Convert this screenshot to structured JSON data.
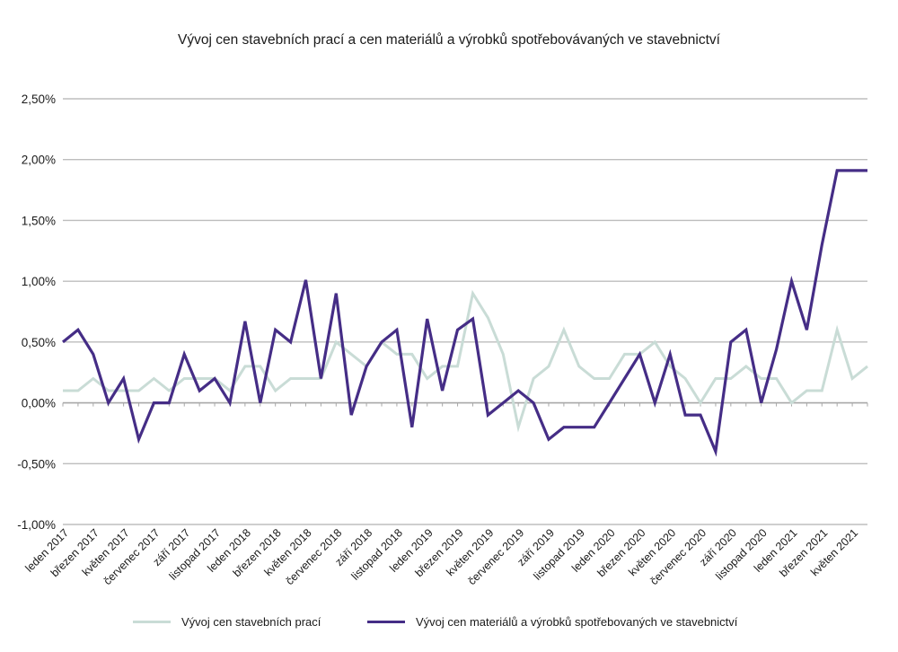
{
  "chart_data": {
    "type": "line",
    "title": "Vývoj cen stavebních prací a cen materiálů a výrobků spotřebovávaných ve stavebnictví",
    "xlabel": "",
    "ylabel": "",
    "ylim": [
      -1.0,
      2.5
    ],
    "yticks": [
      "2,50%",
      "2,00%",
      "1,50%",
      "1,00%",
      "0,50%",
      "0,00%",
      "-0,50%",
      "-1,00%"
    ],
    "ytick_values": [
      2.5,
      2.0,
      1.5,
      1.0,
      0.5,
      0.0,
      -0.5,
      -1.0
    ],
    "grid": true,
    "legend_position": "bottom",
    "x_tick_labels": [
      "leden 2017",
      "březen 2017",
      "květen 2017",
      "červenec 2017",
      "září 2017",
      "listopad 2017",
      "leden 2018",
      "březen 2018",
      "květen 2018",
      "červenec 2018",
      "září 2018",
      "listopad 2018",
      "leden 2019",
      "březen 2019",
      "květen 2019",
      "červenec 2019",
      "září 2019",
      "listopad 2019",
      "leden 2020",
      "březen 2020",
      "květen 2020",
      "červenec 2020",
      "září 2020",
      "listopad 2020",
      "leden 2021",
      "březen 2021",
      "květen 2021"
    ],
    "categories": [
      "leden 2017",
      "únor 2017",
      "březen 2017",
      "duben 2017",
      "květen 2017",
      "červen 2017",
      "červenec 2017",
      "srpen 2017",
      "září 2017",
      "říjen 2017",
      "listopad 2017",
      "prosinec 2017",
      "leden 2018",
      "únor 2018",
      "březen 2018",
      "duben 2018",
      "květen 2018",
      "červen 2018",
      "červenec 2018",
      "srpen 2018",
      "září 2018",
      "říjen 2018",
      "listopad 2018",
      "prosinec 2018",
      "leden 2019",
      "únor 2019",
      "březen 2019",
      "duben 2019",
      "květen 2019",
      "červen 2019",
      "červenec 2019",
      "srpen 2019",
      "září 2019",
      "říjen 2019",
      "listopad 2019",
      "prosinec 2019",
      "leden 2020",
      "únor 2020",
      "březen 2020",
      "duben 2020",
      "květen 2020",
      "červen 2020",
      "červenec 2020",
      "srpen 2020",
      "září 2020",
      "říjen 2020",
      "listopad 2020",
      "prosinec 2020",
      "leden 2021",
      "únor 2021",
      "březen 2021",
      "duben 2021",
      "květen 2021",
      "červen 2021"
    ],
    "series": [
      {
        "name": "Vývoj cen stavebních prací",
        "color": "#c9dcd6",
        "values": [
          0.1,
          0.1,
          0.2,
          0.1,
          0.1,
          0.1,
          0.2,
          0.1,
          0.2,
          0.2,
          0.2,
          0.1,
          0.3,
          0.3,
          0.1,
          0.2,
          0.2,
          0.2,
          0.5,
          0.4,
          0.3,
          0.5,
          0.4,
          0.4,
          0.2,
          0.3,
          0.3,
          0.9,
          0.7,
          0.4,
          -0.2,
          0.2,
          0.3,
          0.6,
          0.3,
          0.2,
          0.2,
          0.4,
          0.4,
          0.5,
          0.3,
          0.2,
          0.0,
          0.2,
          0.2,
          0.3,
          0.2,
          0.2,
          0.0,
          0.1,
          0.1,
          0.6,
          0.2,
          0.3
        ]
      },
      {
        "name": "Vývoj cen materiálů a výrobků spotřebovaných ve stavebnictví",
        "color": "#452d86",
        "values": [
          0.5,
          0.6,
          0.4,
          0.0,
          0.2,
          -0.3,
          0.0,
          0.0,
          0.4,
          0.1,
          0.2,
          0.0,
          0.67,
          0.0,
          0.6,
          0.5,
          1.01,
          0.2,
          0.9,
          -0.1,
          0.3,
          0.5,
          0.6,
          -0.2,
          0.69,
          0.1,
          0.6,
          0.69,
          -0.1,
          0.0,
          0.1,
          0.0,
          -0.3,
          -0.2,
          -0.2,
          -0.2,
          0.0,
          0.2,
          0.4,
          0.0,
          0.4,
          -0.1,
          -0.1,
          -0.4,
          0.5,
          0.6,
          0.0,
          0.44,
          1.0,
          0.6,
          1.3,
          1.91,
          1.91,
          1.91
        ]
      }
    ]
  }
}
